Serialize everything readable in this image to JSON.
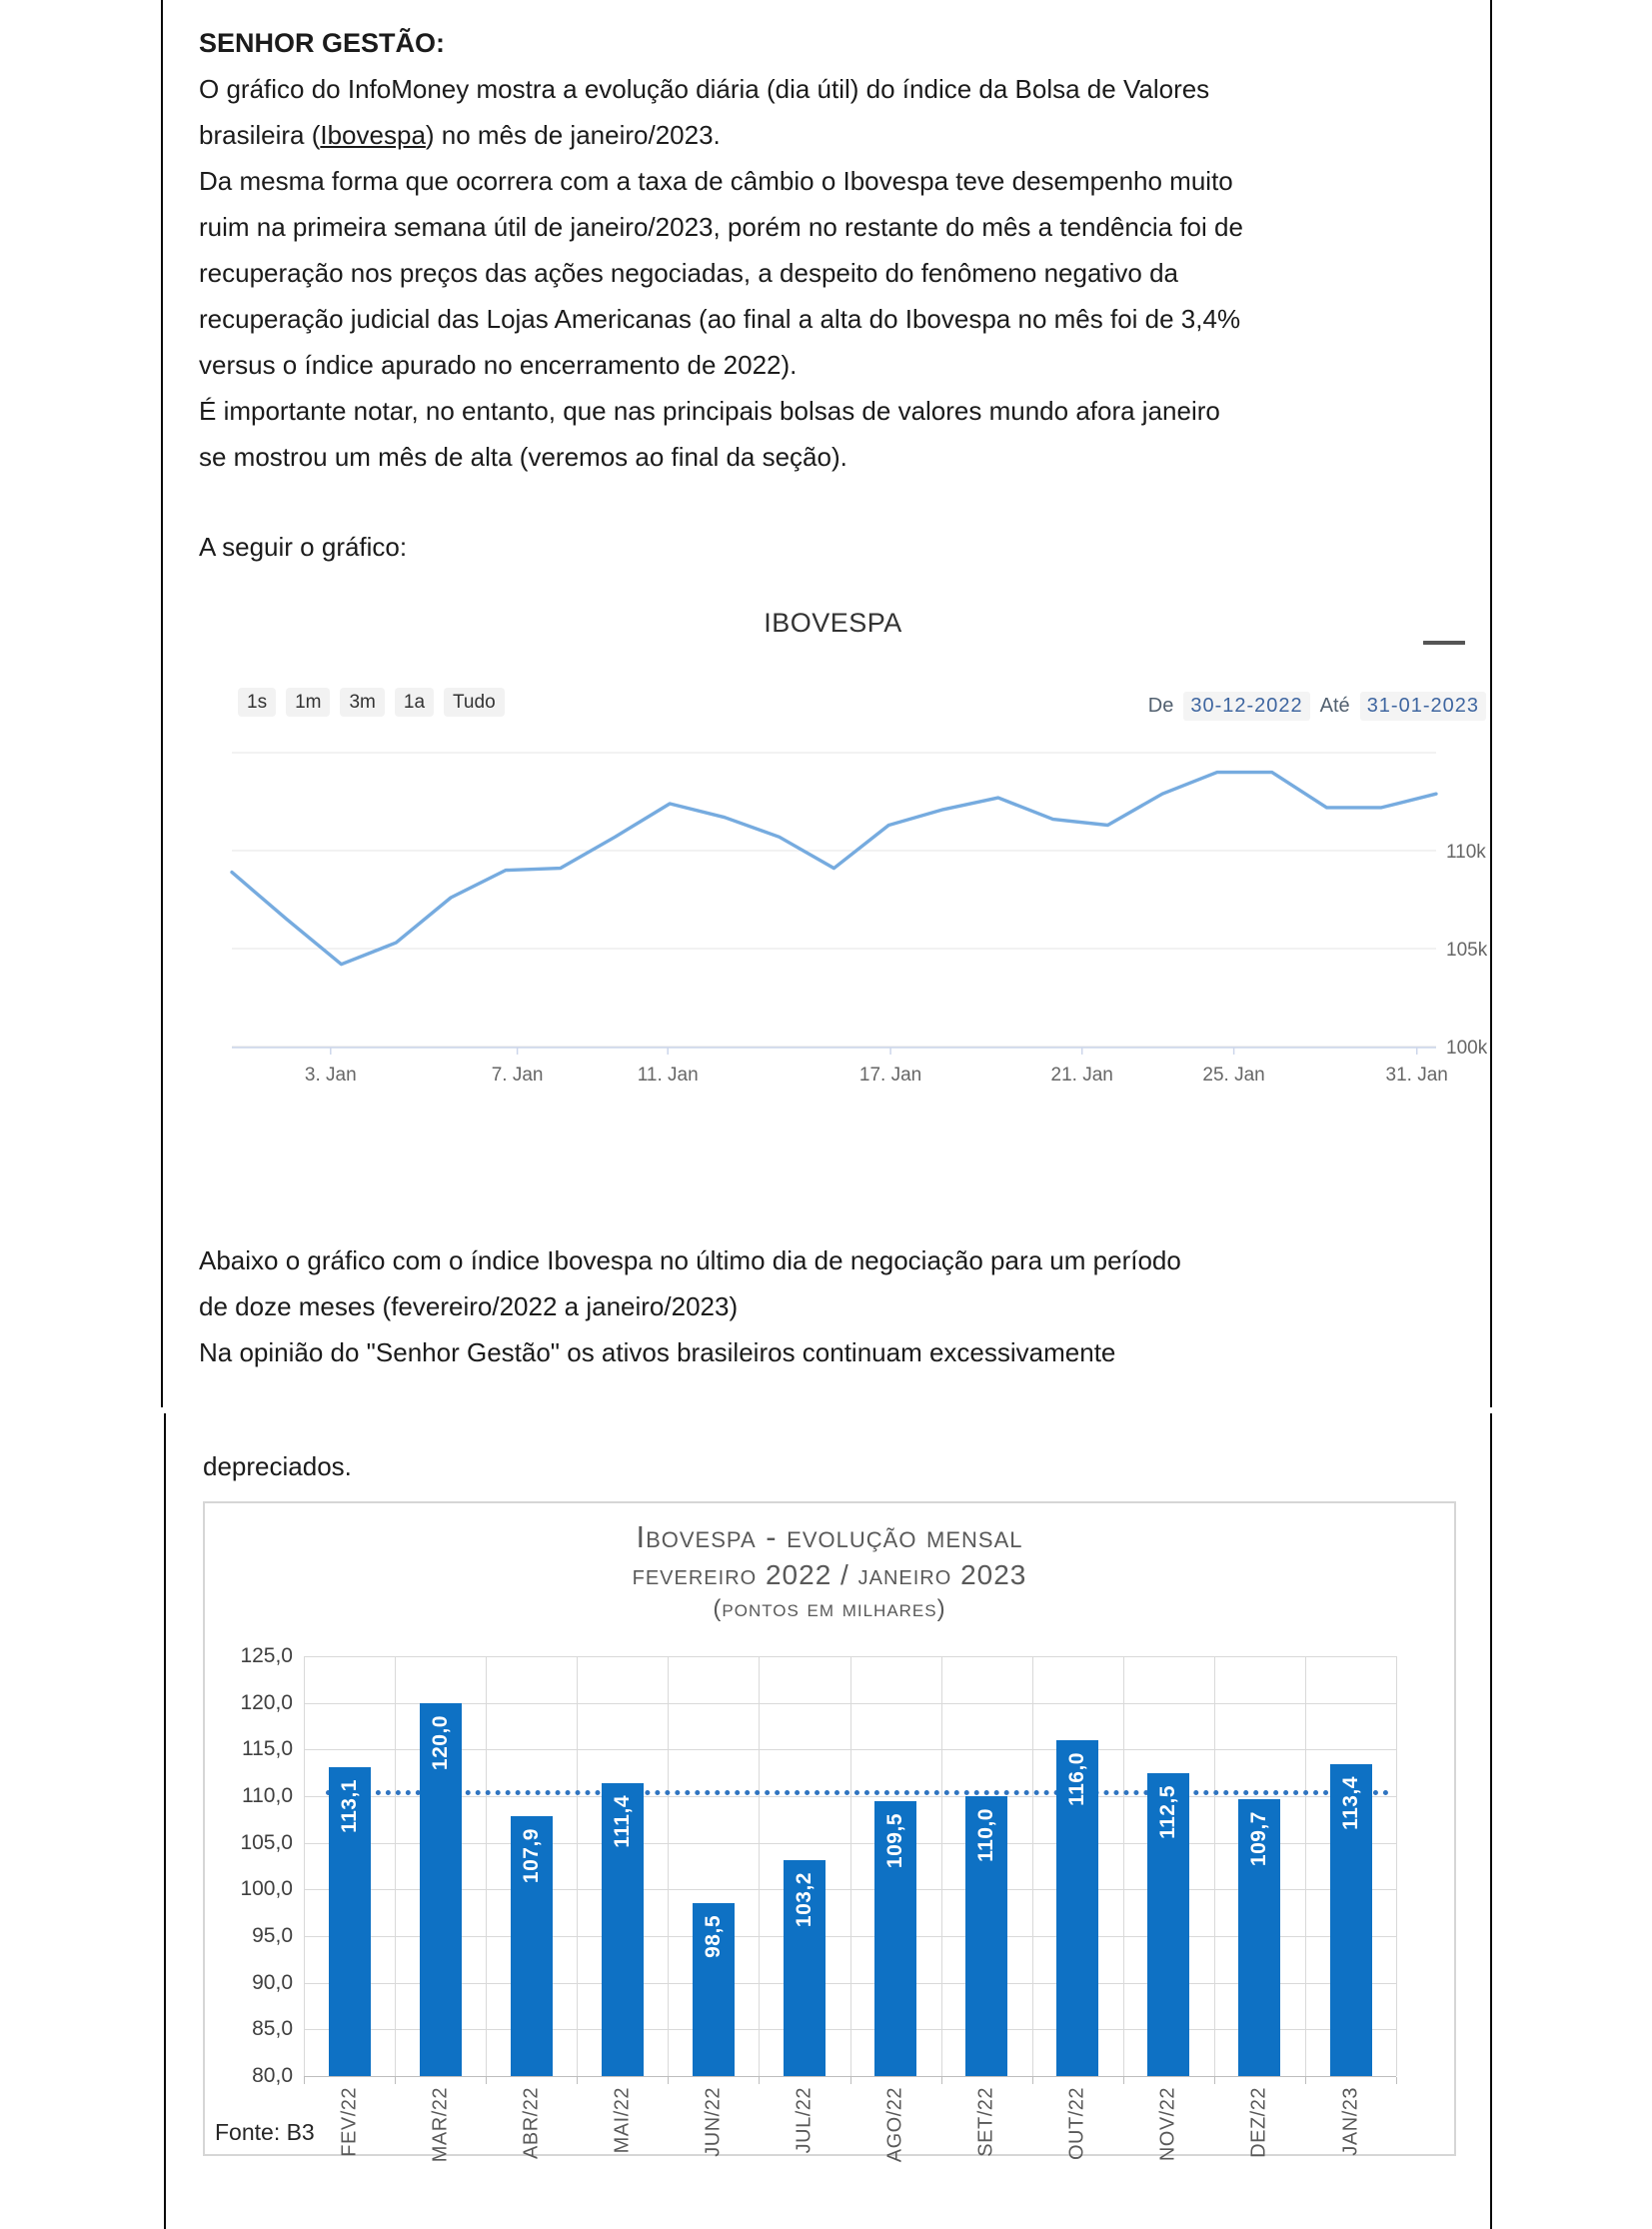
{
  "document": {
    "heading": "SENHOR GESTÃO:",
    "p1_before": "O gráfico do InfoMoney mostra a evolução diária (dia útil) do índice da Bolsa de Valores\nbrasileira (",
    "p1_link": "Ibovespa",
    "p1_after": ") no mês de janeiro/2023.",
    "p2": "Da mesma forma que ocorrera com a taxa de câmbio o Ibovespa teve desempenho muito\nruim na primeira semana útil de janeiro/2023, porém no restante do mês a tendência foi de\nrecuperação nos preços das ações negociadas, a despeito do fenômeno negativo da\nrecuperação judicial das Lojas Americanas (ao final a alta do Ibovespa no mês foi de 3,4%\nversus o índice apurado no encerramento de 2022).",
    "p3": "É importante notar, no entanto, que nas principais bolsas de valores mundo afora janeiro\nse mostrou um mês de alta (veremos ao final da seção).",
    "p4": "A seguir o gráfico:",
    "p5": "Abaixo o gráfico com o índice Ibovespa no último dia de negociação para um período\nde doze meses (fevereiro/2022 a janeiro/2023)\nNa opinião do \"Senhor Gestão\" os ativos brasileiros continuam excessivamente",
    "p6": "depreciados."
  },
  "chart_data": [
    {
      "type": "line",
      "title": "IBOVESPA",
      "menu_icon": "hamburger-menu",
      "range_buttons": [
        "1s",
        "1m",
        "3m",
        "1a",
        "Tudo"
      ],
      "from_label": "De",
      "from_value": "30-12-2022",
      "to_label": "Até",
      "to_value": "31-01-2023",
      "x": [
        "30/12",
        "02/01",
        "03/01",
        "04/01",
        "05/01",
        "06/01",
        "09/01",
        "10/01",
        "11/01",
        "12/01",
        "13/01",
        "16/01",
        "17/01",
        "18/01",
        "19/01",
        "20/01",
        "23/01",
        "24/01",
        "25/01",
        "26/01",
        "27/01",
        "30/01",
        "31/01"
      ],
      "values": [
        108.9,
        106.5,
        104.2,
        105.3,
        107.6,
        109.0,
        109.1,
        110.7,
        112.4,
        111.7,
        110.7,
        109.1,
        111.3,
        112.1,
        112.7,
        111.6,
        111.3,
        112.9,
        114.0,
        114.0,
        112.2,
        112.2,
        112.9
      ],
      "unit": "thousand points",
      "ylim": [
        99.2,
        115.8
      ],
      "grid_values": [
        115,
        110,
        105,
        100
      ],
      "y_ticks": [
        {
          "label": "110k",
          "value": 110
        },
        {
          "label": "105k",
          "value": 105
        },
        {
          "label": "100k",
          "value": 100
        }
      ],
      "x_tick_labels": [
        "3. Jan",
        "7. Jan",
        "11. Jan",
        "17. Jan",
        "21. Jan",
        "25. Jan",
        "31. Jan"
      ],
      "x_tick_pos": [
        0.082,
        0.237,
        0.362,
        0.547,
        0.706,
        0.832,
        0.984
      ],
      "line_color": "#76abdf",
      "grid_on": true,
      "legend": "none"
    },
    {
      "type": "bar",
      "title_line1": "Ibovespa - evolução mensal",
      "title_line2": "fevereiro 2022 / janeiro 2023",
      "title_line3": "(pontos em milhares)",
      "categories": [
        "FEV/22",
        "MAR/22",
        "ABR/22",
        "MAI/22",
        "JUN/22",
        "JUL/22",
        "AGO/22",
        "SET/22",
        "OUT/22",
        "NOV/22",
        "DEZ/22",
        "JAN/23"
      ],
      "values": [
        113.1,
        120.0,
        107.9,
        111.4,
        98.5,
        103.2,
        109.5,
        110.0,
        116.0,
        112.5,
        109.7,
        113.4
      ],
      "labels": [
        "113,1",
        "120,0",
        "107,9",
        "111,4",
        "98,5",
        "103,2",
        "109,5",
        "110,0",
        "116,0",
        "112,5",
        "109,7",
        "113,4"
      ],
      "ylim": [
        80,
        125
      ],
      "y_ticks": [
        "125,0",
        "120,0",
        "115,0",
        "110,0",
        "105,0",
        "100,0",
        "95,0",
        "90,0",
        "85,0",
        "80,0"
      ],
      "reference_line": 110.4,
      "bar_color": "#0e71c4",
      "grid_on": true,
      "legend": "none",
      "source": "Fonte: B3"
    }
  ]
}
